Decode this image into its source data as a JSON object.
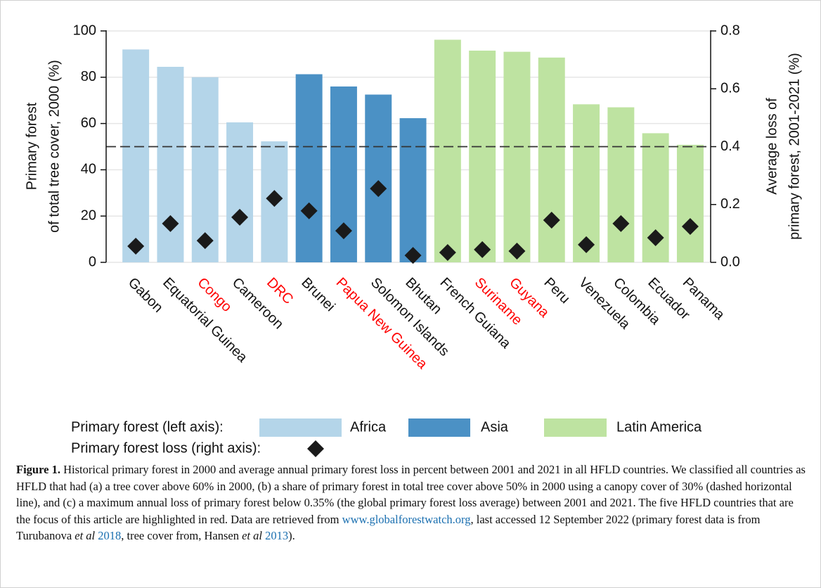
{
  "chart_data": {
    "type": "bar",
    "categories": [
      "Gabon",
      "Equatorial Guinea",
      "Congo",
      "Cameroon",
      "DRC",
      "Brunei",
      "Papua New Guinea",
      "Solomon Islands",
      "Bhutan",
      "French Guiana",
      "Suriname",
      "Guyana",
      "Peru",
      "Venezuela",
      "Colombia",
      "Ecuador",
      "Panama"
    ],
    "label_colors": [
      "#111111",
      "#111111",
      "#ff0000",
      "#111111",
      "#ff0000",
      "#111111",
      "#ff0000",
      "#111111",
      "#111111",
      "#111111",
      "#ff0000",
      "#ff0000",
      "#111111",
      "#111111",
      "#111111",
      "#111111",
      "#111111"
    ],
    "series": [
      {
        "name": "Africa",
        "color": "#b4d5e9",
        "values": [
          92,
          84.5,
          80,
          60.5,
          52.3,
          null,
          null,
          null,
          null,
          null,
          null,
          null,
          null,
          null,
          null,
          null,
          null
        ]
      },
      {
        "name": "Asia",
        "color": "#4b91c5",
        "values": [
          null,
          null,
          null,
          null,
          null,
          81.3,
          76,
          72.5,
          62.3,
          null,
          null,
          null,
          null,
          null,
          null,
          null,
          null
        ]
      },
      {
        "name": "Latin America",
        "color": "#bee3a1",
        "values": [
          null,
          null,
          null,
          null,
          null,
          null,
          null,
          null,
          null,
          96.2,
          91.5,
          91,
          88.5,
          68.3,
          67,
          55.8,
          50.8
        ]
      },
      {
        "color": "#1a1a1a",
        "marker": "diamond",
        "axis": "y2",
        "values": [
          0.056,
          0.134,
          0.075,
          0.156,
          0.221,
          0.178,
          0.109,
          0.255,
          0.024,
          0.034,
          0.044,
          0.039,
          0.146,
          0.061,
          0.134,
          0.085,
          0.124
        ]
      }
    ],
    "legend_headers": [
      "Primary forest (left axis):",
      "Primary forest loss (right axis):"
    ],
    "y_label": [
      "Primary forest",
      "of total tree cover, 2000 (%)"
    ],
    "y2_label": [
      "Average loss of",
      "primary forest, 2001-2021 (%)"
    ],
    "ylim": [
      0,
      100
    ],
    "yticks": [
      0,
      20,
      40,
      60,
      80,
      100
    ],
    "y2lim": [
      0,
      0.8
    ],
    "y2ticks": [
      {
        "value": 0,
        "label": "0.0"
      },
      0.2,
      0.4,
      0.6,
      0.8
    ],
    "grid": true,
    "reference_line": {
      "y": 50,
      "style": "dashed"
    }
  },
  "caption": {
    "label": "Figure 1.",
    "parts": [
      {
        "text": " Historical primary forest in 2000 and average annual primary forest loss in percent between 2001 and 2021 in all HFLD countries. We classified all countries as HFLD that had (a) a tree cover above 60% in 2000, (b) a share of primary forest in total tree cover above 50% in 2000 using a canopy cover of 30% (dashed horizontal line), and (c) a maximum annual loss of primary forest below 0.35% (the global primary forest loss average) between 2001 and 2021. The five HFLD countries that are the focus of this article are highlighted in red. Data are retrieved from ",
        "style": "normal"
      },
      {
        "text": "www.globalforestwatch.org",
        "style": "link"
      },
      {
        "text": ", last accessed 12 September 2022 (primary forest data is from Turubanova ",
        "style": "normal"
      },
      {
        "text": "et al",
        "style": "italic"
      },
      {
        "text": " ",
        "style": "normal"
      },
      {
        "text": "2018",
        "style": "link"
      },
      {
        "text": ", tree cover from, Hansen ",
        "style": "normal"
      },
      {
        "text": "et al",
        "style": "italic"
      },
      {
        "text": " ",
        "style": "normal"
      },
      {
        "text": "2013",
        "style": "link"
      },
      {
        "text": ").",
        "style": "normal"
      }
    ]
  }
}
